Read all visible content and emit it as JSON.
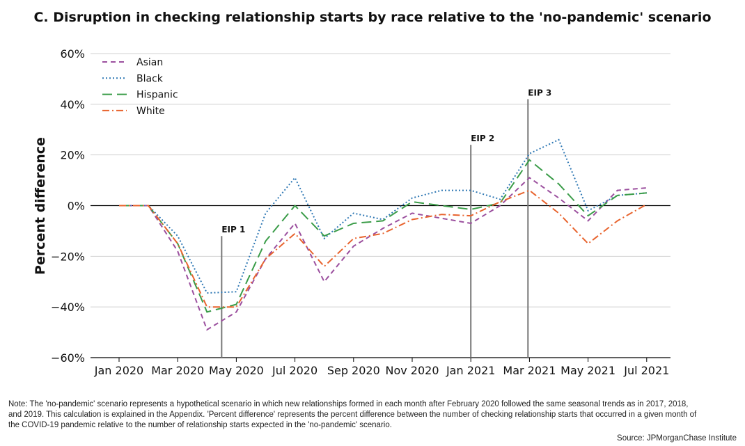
{
  "chart_data": {
    "type": "line",
    "title": "C. Disruption in checking relationship starts by race relative to the 'no-pandemic' scenario",
    "ylabel": "Percent difference",
    "xlabel": "",
    "ylim": [
      -60,
      60
    ],
    "yticks": [
      60,
      40,
      20,
      0,
      -20,
      -40,
      -60
    ],
    "ytick_labels": [
      "60%",
      "40%",
      "20%",
      "0%",
      "−20%",
      "−40%",
      "−60%"
    ],
    "x": [
      "2020-01",
      "2020-02",
      "2020-03",
      "2020-04",
      "2020-05",
      "2020-06",
      "2020-07",
      "2020-08",
      "2020-09",
      "2020-10",
      "2020-11",
      "2020-12",
      "2021-01",
      "2021-02",
      "2021-03",
      "2021-04",
      "2021-05",
      "2021-06",
      "2021-07"
    ],
    "xtick_labels": [
      "Jan 2020",
      "Mar 2020",
      "May 2020",
      "Jul 2020",
      "Sep 2020",
      "Nov 2020",
      "Jan 2021",
      "Mar 2021",
      "May 2021",
      "Jul 2021"
    ],
    "xtick_index": [
      0,
      2,
      4,
      6,
      8,
      10,
      12,
      14,
      16,
      18
    ],
    "legend_position": "top-left",
    "grid": "horizontal",
    "series": [
      {
        "name": "Asian",
        "color": "#9b4f9e",
        "dash": "dashed",
        "values": [
          0,
          0,
          -18,
          -49,
          -42,
          -21,
          -7,
          -30,
          -16,
          -9,
          -3,
          -5,
          -7,
          0,
          11,
          3,
          -6,
          6,
          7
        ]
      },
      {
        "name": "Black",
        "color": "#2f78b4",
        "dash": "dotted",
        "values": [
          0,
          0,
          -12,
          -34.5,
          -34,
          -3,
          11,
          -13,
          -3,
          -5.5,
          3,
          6,
          6,
          2.5,
          20.5,
          26,
          -2,
          4,
          5
        ]
      },
      {
        "name": "Hispanic",
        "color": "#3a9c48",
        "dash": "longdash",
        "values": [
          0,
          0,
          -15,
          -42,
          -39,
          -14,
          0,
          -12,
          -7,
          -6,
          1.5,
          0,
          -1.5,
          1,
          18,
          8.5,
          -4,
          4,
          5
        ]
      },
      {
        "name": "White",
        "color": "#e8632d",
        "dash": "dashdot",
        "values": [
          0,
          0,
          -15,
          -40,
          -40,
          -21,
          -11,
          -24,
          -13,
          -11,
          -5.5,
          -3.5,
          -4,
          1.5,
          6,
          -3,
          -15,
          -6,
          0.5
        ]
      }
    ],
    "annotations": [
      {
        "label": "EIP 1",
        "x_index": 3.5,
        "y_top": -12
      },
      {
        "label": "EIP 2",
        "x_index": 12,
        "y_top": 24
      },
      {
        "label": "EIP 3",
        "x_index": 13.95,
        "y_top": 42
      }
    ]
  },
  "note": "Note: The 'no-pandemic' scenario represents a hypothetical scenario in which new relationships formed in each month after February 2020 followed the same seasonal trends as in 2017, 2018, and 2019. This calculation is explained in the Appendix. 'Percent difference' represents the percent difference between the number of checking relationship starts that occurred in a given month of the COVID-19 pandemic relative to the number of relationship starts expected in the 'no-pandemic' scenario.",
  "source": "Source: JPMorganChase Institute"
}
